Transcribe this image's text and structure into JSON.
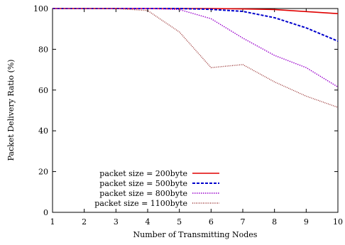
{
  "chart_data": {
    "type": "line",
    "title": "",
    "xlabel": "Number of Transmitting Nodes",
    "ylabel": "Packet Delivery Ratio (%)",
    "xlim": [
      1,
      10
    ],
    "ylim": [
      0,
      100
    ],
    "xticks": [
      "1",
      "2",
      "3",
      "4",
      "5",
      "6",
      "7",
      "8",
      "9",
      "10"
    ],
    "yticks": [
      "0",
      "20",
      "40",
      "60",
      "80",
      "100"
    ],
    "grid": false,
    "legend_position": "bottom-left",
    "x": [
      1,
      2,
      3,
      4,
      5,
      6,
      7,
      8,
      9,
      10
    ],
    "series": [
      {
        "name": "packet size = 200byte",
        "color": "#e00000",
        "dash": "solid",
        "values": [
          100,
          100,
          100,
          100,
          100,
          100,
          99.8,
          99.5,
          98.5,
          97.5
        ]
      },
      {
        "name": "packet size = 500byte",
        "color": "#0000cc",
        "dash": "dashed",
        "values": [
          100,
          100,
          100,
          100,
          100,
          99.6,
          98.6,
          95.5,
          90.5,
          84
        ]
      },
      {
        "name": "packet size = 800byte",
        "color": "#9900cc",
        "dash": "dotted",
        "values": [
          100,
          100,
          100,
          100,
          99.5,
          95,
          85.5,
          77,
          71,
          61.5
        ]
      },
      {
        "name": "packet size = 1100byte",
        "color": "#993333",
        "dash": "dotted",
        "values": [
          100,
          100,
          100,
          99,
          88.5,
          71,
          72.5,
          64,
          57,
          51.5
        ]
      }
    ]
  }
}
